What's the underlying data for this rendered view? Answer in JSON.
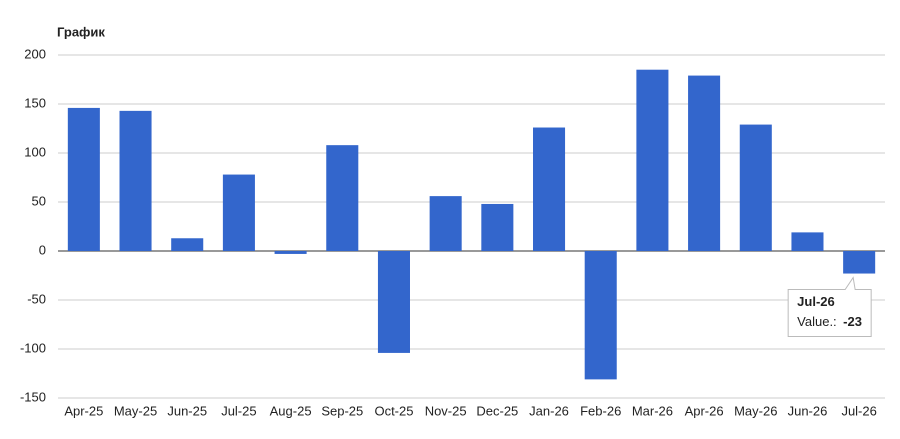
{
  "chart_data": {
    "type": "bar",
    "title": "График",
    "categories": [
      "Apr-25",
      "May-25",
      "Jun-25",
      "Jul-25",
      "Aug-25",
      "Sep-25",
      "Oct-25",
      "Nov-25",
      "Dec-25",
      "Jan-26",
      "Feb-26",
      "Mar-26",
      "Apr-26",
      "May-26",
      "Jun-26",
      "Jul-26"
    ],
    "values": [
      146,
      143,
      13,
      78,
      -3,
      108,
      -104,
      56,
      48,
      126,
      -131,
      185,
      179,
      129,
      19,
      -23
    ],
    "color": "#3366cc",
    "ylim": [
      -150,
      200
    ],
    "yticks": [
      200,
      150,
      100,
      50,
      0,
      -50,
      -100,
      -150
    ],
    "grid": true,
    "tooltip_label": "Value.:"
  }
}
